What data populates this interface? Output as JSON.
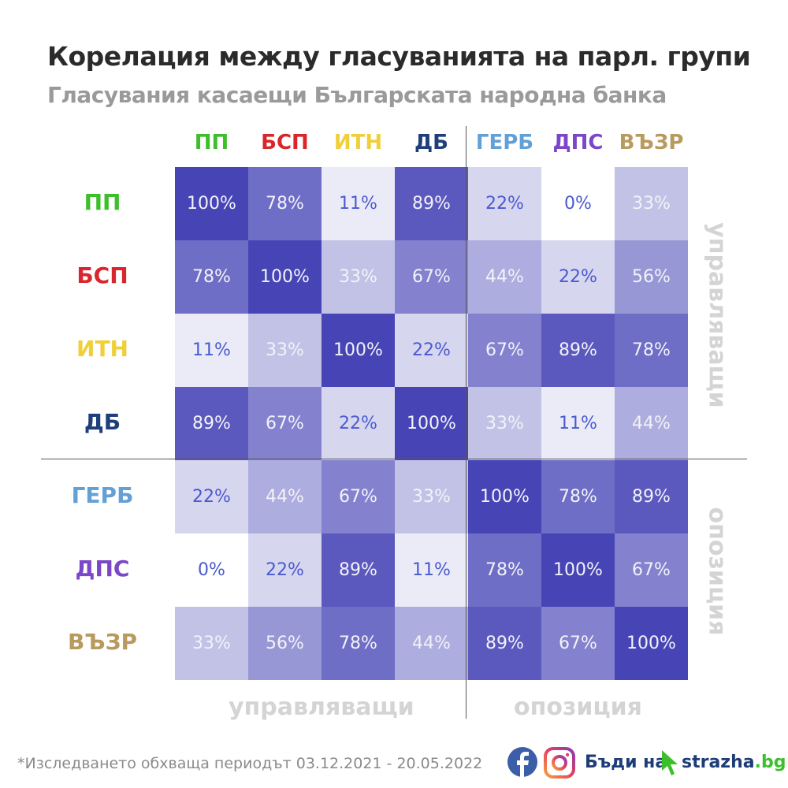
{
  "header": {
    "title": "Корелация между гласуванията на парл. групи",
    "subtitle": "Гласувания касаещи Българската народна банка"
  },
  "groups": [
    {
      "label": "ПП",
      "color": "#3cbf2a"
    },
    {
      "label": "БСП",
      "color": "#d9262c"
    },
    {
      "label": "ИТН",
      "color": "#efcf3a"
    },
    {
      "label": "ДБ",
      "color": "#1f3f7a"
    },
    {
      "label": "ГЕРБ",
      "color": "#62a0d6"
    },
    {
      "label": "ДПС",
      "color": "#7c46c8"
    },
    {
      "label": "ВЪЗР",
      "color": "#b99a5e"
    }
  ],
  "side_labels": {
    "ruling": "управляващи",
    "opposition": "опозиция"
  },
  "chart_data": {
    "type": "heatmap",
    "title": "Корелация между гласуванията на парл. групи",
    "rows": [
      "ПП",
      "БСП",
      "ИТН",
      "ДБ",
      "ГЕРБ",
      "ДПС",
      "ВЪЗР"
    ],
    "columns": [
      "ПП",
      "БСП",
      "ИТН",
      "ДБ",
      "ГЕРБ",
      "ДПС",
      "ВЪЗР"
    ],
    "unit": "%",
    "values": [
      [
        100,
        78,
        11,
        89,
        22,
        0,
        33
      ],
      [
        78,
        100,
        33,
        67,
        44,
        22,
        56
      ],
      [
        11,
        33,
        100,
        22,
        67,
        89,
        78
      ],
      [
        89,
        67,
        22,
        100,
        33,
        11,
        44
      ],
      [
        22,
        44,
        67,
        33,
        100,
        78,
        89
      ],
      [
        0,
        22,
        89,
        11,
        78,
        100,
        67
      ],
      [
        33,
        56,
        78,
        44,
        89,
        67,
        100
      ]
    ],
    "color_scale": {
      "min": "#ffffff",
      "max": "#4745b6"
    }
  },
  "footer": {
    "note": "*Изследването обхваща периодът 03.12.2021 - 20.05.2022",
    "brand_prefix": "Бъди на",
    "brand_name": "strazha",
    "brand_tld": ".bg"
  }
}
